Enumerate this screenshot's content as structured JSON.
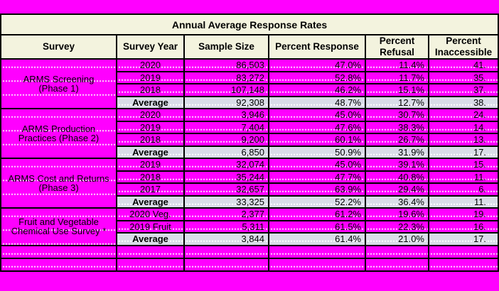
{
  "title": "Annual Average Response Rates",
  "columns": [
    "Survey",
    "Survey Year",
    "Sample Size",
    "Percent Response",
    "Percent\nRefusal",
    "Percent\nInaccessible"
  ],
  "groups": [
    {
      "survey": "ARMS Screening\n(Phase 1)",
      "rows": [
        {
          "year": "2020",
          "sample_size": "86,503",
          "percent_response": "47.0%",
          "percent_refusal": "11.4%",
          "percent_inaccessible": "41."
        },
        {
          "year": "2019",
          "sample_size": "83,272",
          "percent_response": "52.8%",
          "percent_refusal": "11.7%",
          "percent_inaccessible": "35."
        },
        {
          "year": "2018",
          "sample_size": "107,148",
          "percent_response": "46.2%",
          "percent_refusal": "15.1%",
          "percent_inaccessible": "37."
        }
      ],
      "average": {
        "label": "Average",
        "sample_size": "92,308",
        "percent_response": "48.7%",
        "percent_refusal": "12.7%",
        "percent_inaccessible": "38."
      }
    },
    {
      "survey": "ARMS Production\nPractices (Phase 2)",
      "rows": [
        {
          "year": "2020",
          "sample_size": "3,946",
          "percent_response": "45.0%",
          "percent_refusal": "30.7%",
          "percent_inaccessible": "24."
        },
        {
          "year": "2019",
          "sample_size": "7,404",
          "percent_response": "47.6%",
          "percent_refusal": "38.3%",
          "percent_inaccessible": "14."
        },
        {
          "year": "2018",
          "sample_size": "9,200",
          "percent_response": "60.1%",
          "percent_refusal": "26.7%",
          "percent_inaccessible": "13."
        }
      ],
      "average": {
        "label": "Average",
        "sample_size": "6,850",
        "percent_response": "50.9%",
        "percent_refusal": "31.9%",
        "percent_inaccessible": "17."
      }
    },
    {
      "survey": "ARMS Cost and Returns\n(Phase 3)",
      "rows": [
        {
          "year": "2019",
          "sample_size": "32,074",
          "percent_response": "45.0%",
          "percent_refusal": "39.1%",
          "percent_inaccessible": "15."
        },
        {
          "year": "2018",
          "sample_size": "35,244",
          "percent_response": "47.7%",
          "percent_refusal": "40.8%",
          "percent_inaccessible": "11."
        },
        {
          "year": "2017",
          "sample_size": "32,657",
          "percent_response": "63.9%",
          "percent_refusal": "29.4%",
          "percent_inaccessible": "6."
        }
      ],
      "average": {
        "label": "Average",
        "sample_size": "33,325",
        "percent_response": "52.2%",
        "percent_refusal": "36.4%",
        "percent_inaccessible": "11."
      }
    },
    {
      "survey": "Fruit and Vegetable\nChemical Use Survey *",
      "rows": [
        {
          "year": "2020 Veg.",
          "sample_size": "2,377",
          "percent_response": "61.2%",
          "percent_refusal": "19.6%",
          "percent_inaccessible": "19."
        },
        {
          "year": "2019 Fruit",
          "sample_size": "5,311",
          "percent_response": "61.5%",
          "percent_refusal": "22.3%",
          "percent_inaccessible": "16."
        }
      ],
      "average": {
        "label": "Average",
        "sample_size": "3,844",
        "percent_response": "61.4%",
        "percent_refusal": "21.0%",
        "percent_inaccessible": "17."
      }
    }
  ],
  "empty_row_count": 2,
  "colors": {
    "cell_background": "#ff00ff",
    "header_background": "#f3f3de",
    "average_row_background": "#d9dce8",
    "border": "#000000",
    "text": "#000000"
  }
}
